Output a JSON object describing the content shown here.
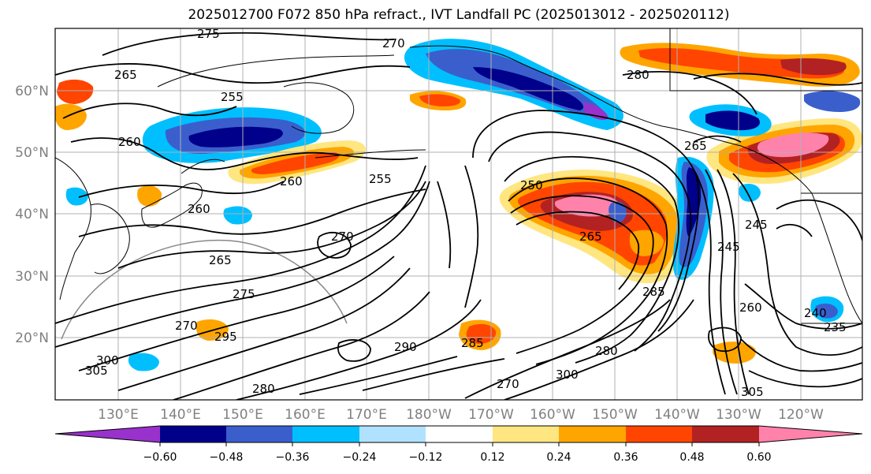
{
  "title": "2025012700 F072 850 hPa refract., IVT Landfall PC (2025013012 - 2025020112)",
  "lat_labels": [
    "60°N",
    "50°N",
    "40°N",
    "30°N",
    "20°N"
  ],
  "lon_labels": [
    "130°E",
    "140°E",
    "150°E",
    "160°E",
    "170°E",
    "180°W",
    "170°W",
    "160°W",
    "150°W",
    "140°W",
    "130°W",
    "120°W"
  ],
  "contour_labels": [
    "275",
    "270",
    "265",
    "255",
    "260",
    "260",
    "255",
    "270",
    "265",
    "275",
    "260",
    "280",
    "270",
    "250",
    "265",
    "265",
    "245",
    "245",
    "285",
    "280",
    "260",
    "295",
    "305",
    "300",
    "290",
    "280",
    "235",
    "240",
    "300",
    "305",
    "270",
    "285"
  ],
  "colorbar": {
    "colors": [
      "#9932cc",
      "#00008b",
      "#3a5fcd",
      "#00bfff",
      "#b0e2ff",
      "#ffffff",
      "#ffe680",
      "#ffa500",
      "#ff4500",
      "#b22222",
      "#ff82ab"
    ],
    "ticks": [
      "−0.60",
      "−0.48",
      "−0.36",
      "−0.24",
      "−0.12",
      "0.12",
      "0.24",
      "0.36",
      "0.48",
      "0.60"
    ]
  }
}
